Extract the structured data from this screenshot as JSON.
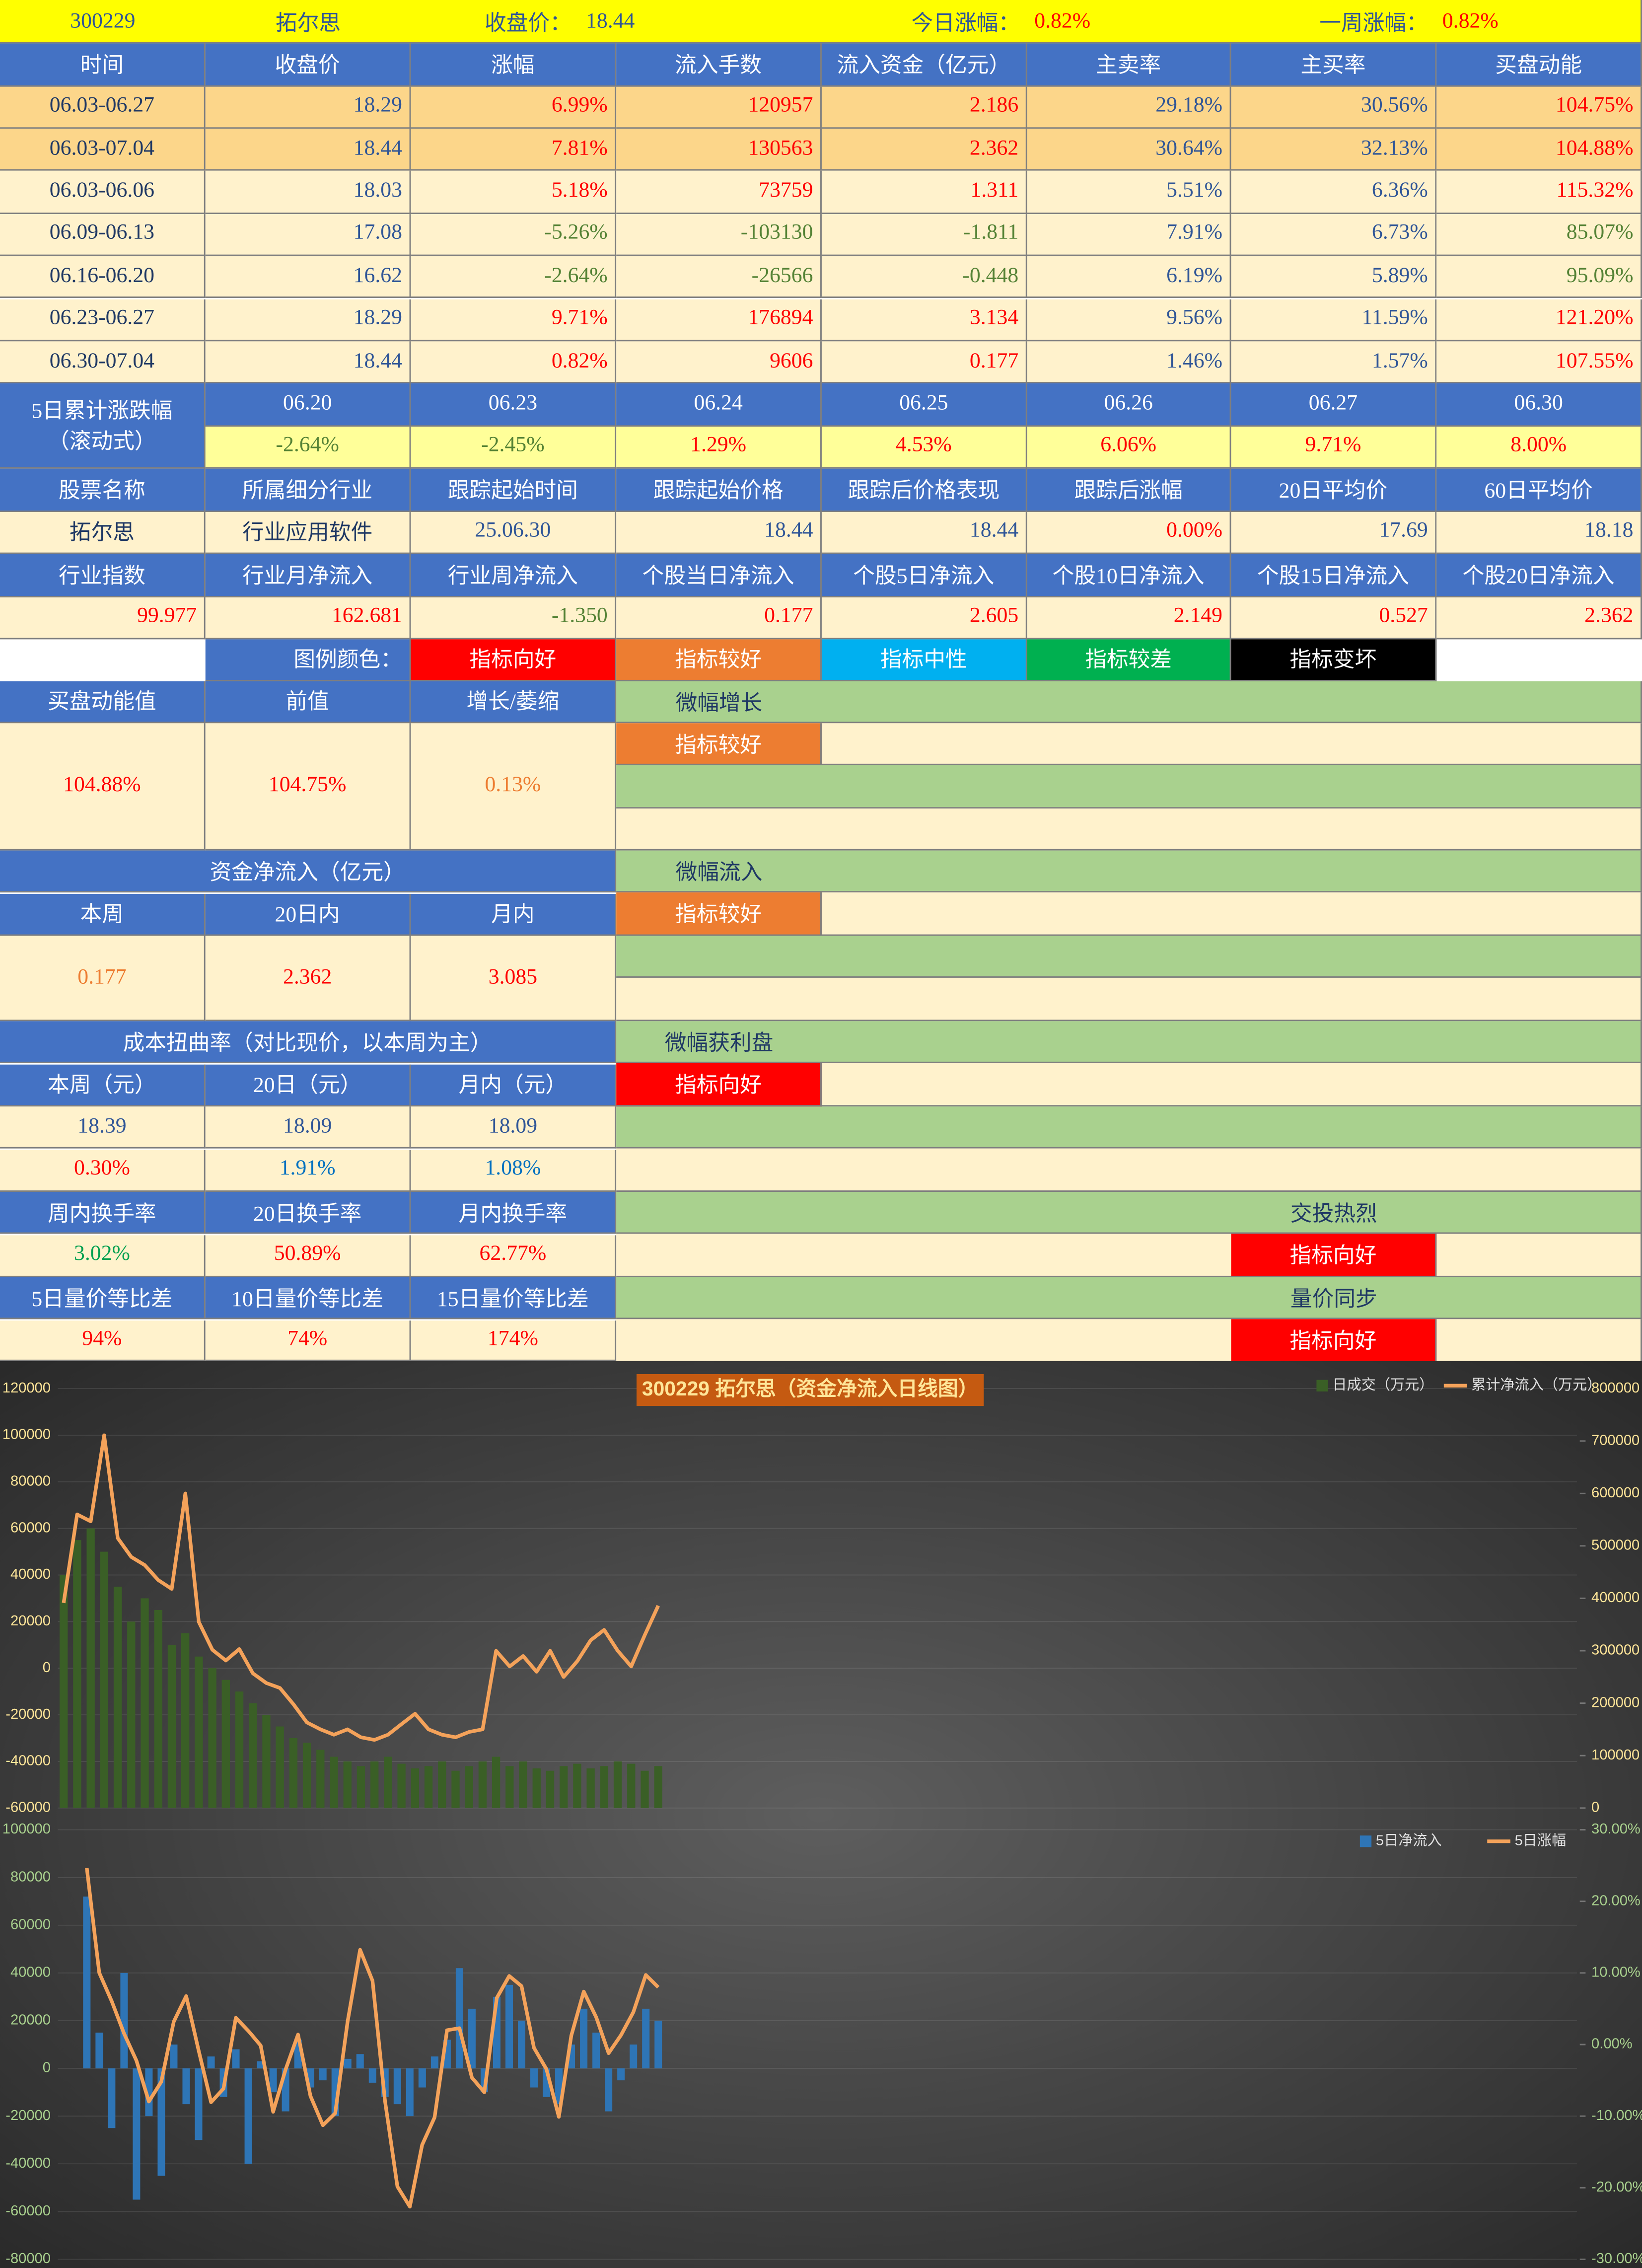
{
  "header": {
    "code": "300229",
    "name": "拓尔思",
    "close_label": "收盘价：",
    "close": "18.44",
    "day_label": "今日涨幅：",
    "day": "0.82%",
    "week_label": "一周涨幅：",
    "week": "0.82%"
  },
  "weekly": {
    "columns": [
      "时间",
      "收盘价",
      "涨幅",
      "流入手数",
      "流入资金（亿元）",
      "主卖率",
      "主买率",
      "买盘动能"
    ],
    "rows": [
      [
        "06.03-06.27",
        "18.29",
        "6.99%",
        "120957",
        "2.186",
        "29.18%",
        "30.56%",
        "104.75%"
      ],
      [
        "06.03-07.04",
        "18.44",
        "7.81%",
        "130563",
        "2.362",
        "30.64%",
        "32.13%",
        "104.88%"
      ],
      [
        "06.03-06.06",
        "18.03",
        "5.18%",
        "73759",
        "1.311",
        "5.51%",
        "6.36%",
        "115.32%"
      ],
      [
        "06.09-06.13",
        "17.08",
        "-5.26%",
        "-103130",
        "-1.811",
        "7.91%",
        "6.73%",
        "85.07%"
      ],
      [
        "06.16-06.20",
        "16.62",
        "-2.64%",
        "-26566",
        "-0.448",
        "6.19%",
        "5.89%",
        "95.09%"
      ],
      [
        "06.23-06.27",
        "18.29",
        "9.71%",
        "176894",
        "3.134",
        "9.56%",
        "11.59%",
        "121.20%"
      ],
      [
        "06.30-07.04",
        "18.44",
        "0.82%",
        "9606",
        "0.177",
        "1.46%",
        "1.57%",
        "107.55%"
      ]
    ]
  },
  "rolling": {
    "label": [
      "5日累计涨跌幅",
      "（滚动式）"
    ],
    "dates": [
      "06.20",
      "06.23",
      "06.24",
      "06.25",
      "06.26",
      "06.27",
      "06.30"
    ],
    "values": [
      "-2.64%",
      "-2.45%",
      "1.29%",
      "4.53%",
      "6.06%",
      "9.71%",
      "8.00%"
    ]
  },
  "stock": {
    "columns": [
      "股票名称",
      "所属细分行业",
      "跟踪起始时间",
      "跟踪起始价格",
      "跟踪后价格表现",
      "跟踪后涨幅",
      "20日平均价",
      "60日平均价"
    ],
    "values": [
      "拓尔思",
      "行业应用软件",
      "25.06.30",
      "18.44",
      "18.44",
      "0.00%",
      "17.69",
      "18.18"
    ]
  },
  "flows": {
    "columns": [
      "行业指数",
      "行业月净流入",
      "行业周净流入",
      "个股当日净流入",
      "个股5日净流入",
      "个股10日净流入",
      "个股15日净流入",
      "个股20日净流入"
    ],
    "values": [
      "99.977",
      "162.681",
      "-1.350",
      "0.177",
      "2.605",
      "2.149",
      "0.527",
      "2.362"
    ]
  },
  "legend": {
    "label": "图例颜色：",
    "items": [
      {
        "text": "指标向好",
        "color": "#ff0000"
      },
      {
        "text": "指标较好",
        "color": "#ed7d31"
      },
      {
        "text": "指标中性",
        "color": "#00b0f0"
      },
      {
        "text": "指标较差",
        "color": "#00b050"
      },
      {
        "text": "指标变坏",
        "color": "#000000"
      }
    ]
  },
  "panels": [
    {
      "headers": [
        "买盘动能值",
        "前值",
        "增长/萎缩"
      ],
      "values": [
        "104.88%",
        "104.75%",
        "0.13%"
      ],
      "status": "微幅增长",
      "signal": {
        "text": "指标较好",
        "color": "#ed7d31"
      }
    },
    {
      "title": "资金净流入（亿元）",
      "headers": [
        "本周",
        "20日内",
        "月内"
      ],
      "values": [
        "0.177",
        "2.362",
        "3.085"
      ],
      "status": "微幅流入",
      "signal": {
        "text": "指标较好",
        "color": "#ed7d31"
      }
    },
    {
      "title": "成本扭曲率（对比现价，以本周为主）",
      "headers": [
        "本周（元）",
        "20日（元）",
        "月内（元）"
      ],
      "values": [
        "18.39",
        "18.09",
        "18.09"
      ],
      "values2": [
        "0.30%",
        "1.91%",
        "1.08%"
      ],
      "status": "微幅获利盘",
      "signal": {
        "text": "指标向好",
        "color": "#ff0000"
      }
    },
    {
      "headers": [
        "周内换手率",
        "20日换手率",
        "月内换手率"
      ],
      "values": [
        "3.02%",
        "50.89%",
        "62.77%"
      ],
      "status": "交投热烈",
      "signal": {
        "text": "指标向好",
        "color": "#ff0000"
      }
    },
    {
      "headers": [
        "5日量价等比差",
        "10日量价等比差",
        "15日量价等比差"
      ],
      "values": [
        "94%",
        "74%",
        "174%"
      ],
      "status": "量价同步",
      "signal": {
        "text": "指标向好",
        "color": "#ff0000"
      }
    }
  ],
  "chart_data": [
    {
      "type": "bar_line",
      "title": "300229  拓尔思（资金净流入日线图）",
      "grid": true,
      "categories": [
        null,
        null,
        null,
        null,
        null,
        null,
        null,
        null,
        null,
        null,
        null,
        null,
        null,
        null,
        null,
        null,
        null,
        null,
        null,
        null,
        null,
        null,
        null,
        null,
        null,
        null,
        null,
        null,
        null,
        null,
        null,
        null,
        null,
        null,
        null,
        null,
        null,
        null,
        null,
        null,
        null,
        null,
        null,
        null,
        null
      ],
      "series": [
        {
          "name": "日成交（万元）",
          "type": "bar",
          "color": "#3a5f26",
          "values": [
            40000,
            55000,
            60000,
            50000,
            35000,
            20000,
            30000,
            25000,
            10000,
            15000,
            5000,
            0,
            -5000,
            -10000,
            -15000,
            -20000,
            -25000,
            -30000,
            -32000,
            -35000,
            -38000,
            -40000,
            -42000,
            -40000,
            -38000,
            -41000,
            -43000,
            -42000,
            -40000,
            -44000,
            -42000,
            -40000,
            -38000,
            -42000,
            -40000,
            -43000,
            -44000,
            -42000,
            -41000,
            -43000,
            -42000,
            -40000,
            -41000,
            -44000,
            -42000
          ]
        },
        {
          "name": "累计净流入（万元）",
          "type": "line",
          "color": "#f4a25a",
          "axis": "y2",
          "values": [
            391219,
            560000,
            546812,
            710893,
            514773,
            478997,
            463464,
            434654,
            417842,
            600000,
            354999,
            301906,
            281301,
            303137,
            256891,
            238455,
            229018,
            198000,
            163338,
            150000,
            140000,
            150000,
            135000,
            130000,
            140000,
            160000,
            180000,
            150000,
            140000,
            135000,
            145000,
            150000,
            300000,
            270000,
            290000,
            260000,
            300000,
            250000,
            280000,
            320000,
            340000,
            300000,
            270000,
            330000,
            386000
          ]
        }
      ],
      "ylim": [
        -60000,
        120000
      ],
      "yticks": [
        -60000,
        -40000,
        -20000,
        0,
        20000,
        40000,
        60000,
        80000,
        100000,
        120000
      ],
      "y2lim": [
        0,
        800000
      ],
      "y2ticks": [
        0,
        100000,
        200000,
        300000,
        400000,
        500000,
        600000,
        700000,
        800000
      ]
    },
    {
      "type": "bar_line",
      "grid": true,
      "categories": [
        null,
        null,
        null,
        null,
        null,
        null,
        null,
        null,
        null,
        null,
        null,
        null,
        null,
        null,
        null,
        null,
        null,
        null,
        null,
        null,
        null,
        null,
        null,
        null,
        null,
        null,
        null,
        null,
        null,
        null,
        null,
        null,
        null,
        null,
        null,
        null,
        null,
        null,
        null,
        null,
        null,
        null,
        null,
        null,
        null,
        null,
        null
      ],
      "series": [
        {
          "name": "5日净流入",
          "type": "bar",
          "color": "#2e75b6",
          "values": [
            72000,
            15000,
            -25000,
            40000,
            -55000,
            -20000,
            -45000,
            10000,
            -15000,
            -30000,
            5000,
            -12000,
            8000,
            -40000,
            3000,
            -10000,
            -18000,
            12000,
            -8000,
            -5000,
            -20000,
            4000,
            6000,
            -6000,
            -12000,
            -15000,
            -20000,
            -8000,
            5000,
            12000,
            42000,
            25000,
            -10000,
            30000,
            35000,
            20000,
            -8000,
            -12000,
            -15000,
            10000,
            25000,
            15000,
            -18000,
            -5000,
            10000,
            25000,
            20000
          ]
        },
        {
          "name": "5日涨幅",
          "type": "line",
          "color": "#f4a25a",
          "axis": "y2",
          "values": [
            24.67,
            10.03,
            6.06,
            1.52,
            -2.25,
            -7.95,
            -5.2,
            3.19,
            6.77,
            -0.83,
            -8.06,
            -6.16,
            3.74,
            1.92,
            -0.15,
            -9.39,
            -3.5,
            1.39,
            -7.2,
            -11.28,
            -9.6,
            3.24,
            13.24,
            8.9,
            -7.84,
            -19.84,
            -22.65,
            -14.02,
            -10.19,
            1.99,
            2.29,
            -4.62,
            -6.66,
            6.5,
            9.58,
            8.16,
            -0.47,
            -3.43,
            -10.11,
            1.26,
            7.4,
            3.82,
            -1.22,
            1.29,
            4.53,
            9.71,
            8.0
          ]
        }
      ],
      "ylim": [
        -80000,
        100000
      ],
      "yticks": [
        -80000,
        -60000,
        -40000,
        -20000,
        0,
        20000,
        40000,
        60000,
        80000,
        100000
      ],
      "y2lim": [
        -30,
        30
      ],
      "y2ticks": [
        {
          "value": -30,
          "label": "-30.00%"
        },
        {
          "value": -20,
          "label": "-20.00%"
        },
        {
          "value": -10,
          "label": "-10.00%"
        },
        {
          "value": 0,
          "label": "0.00%"
        },
        {
          "value": 10,
          "label": "10.00%"
        },
        {
          "value": 20,
          "label": "20.00%"
        },
        {
          "value": 30,
          "label": "30.00%"
        }
      ]
    }
  ]
}
